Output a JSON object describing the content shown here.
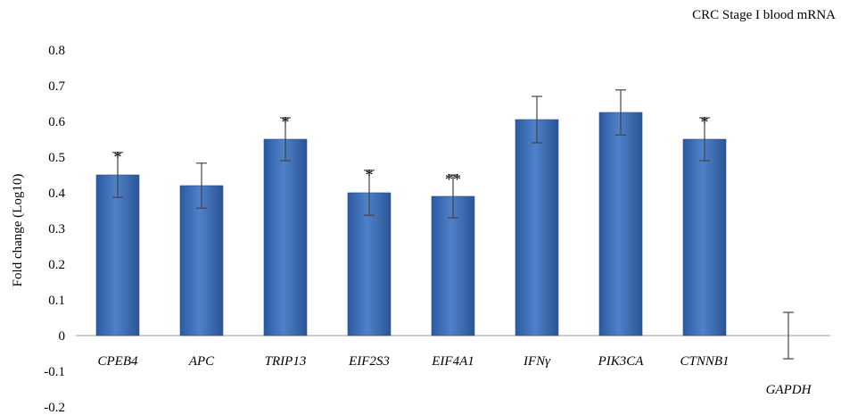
{
  "chart_data": {
    "type": "bar",
    "title": "CRC Stage I blood mRNA",
    "ylabel": "Fold change (Log10)",
    "xlabel": "",
    "ylim": [
      -0.2,
      0.8
    ],
    "yticks": [
      "0.8",
      "0.7",
      "0.6",
      "0.5",
      "0.4",
      "0.3",
      "0.2",
      "0.1",
      "0",
      "-0.1",
      "-0.2"
    ],
    "ytick_values": [
      0.8,
      0.7,
      0.6,
      0.5,
      0.4,
      0.3,
      0.2,
      0.1,
      0,
      -0.1,
      -0.2
    ],
    "categories": [
      "CPEB4",
      "APC",
      "TRIP13",
      "EIF2S3",
      "EIF4A1",
      "IFNγ",
      "PIK3CA",
      "CTNNB1",
      "GAPDH"
    ],
    "values": [
      0.45,
      0.42,
      0.55,
      0.4,
      0.39,
      0.605,
      0.625,
      0.55,
      0.0
    ],
    "errors": [
      0.063,
      0.063,
      0.06,
      0.063,
      0.06,
      0.065,
      0.063,
      0.06,
      0.065
    ],
    "annotations": [
      "*",
      "",
      "*",
      "*",
      "**",
      "",
      "",
      "*",
      ""
    ],
    "grid": false,
    "bar_color": "#4472C4"
  }
}
